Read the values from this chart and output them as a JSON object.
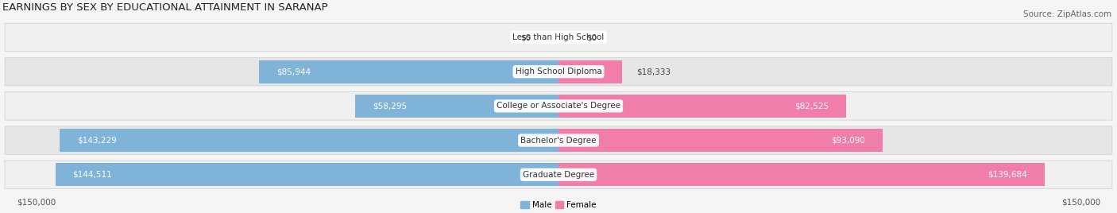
{
  "title": "EARNINGS BY SEX BY EDUCATIONAL ATTAINMENT IN SARANAP",
  "source": "Source: ZipAtlas.com",
  "categories": [
    "Less than High School",
    "High School Diploma",
    "College or Associate's Degree",
    "Bachelor's Degree",
    "Graduate Degree"
  ],
  "male_values": [
    0,
    85944,
    58295,
    143229,
    144511
  ],
  "female_values": [
    0,
    18333,
    82525,
    93090,
    139684
  ],
  "male_color": "#7fb3d8",
  "female_color": "#f07daa",
  "male_label": "Male",
  "female_label": "Female",
  "axis_limit": 150000,
  "bar_height": 0.68,
  "background_color": "#f5f5f5",
  "row_colors": [
    "#efefef",
    "#e8e8e8",
    "#efefef",
    "#e8e8e8",
    "#efefef"
  ],
  "title_fontsize": 9.5,
  "value_fontsize": 7.5,
  "category_fontsize": 7.5,
  "source_fontsize": 7.5,
  "tick_fontsize": 7.5,
  "inside_label_threshold": 55000
}
